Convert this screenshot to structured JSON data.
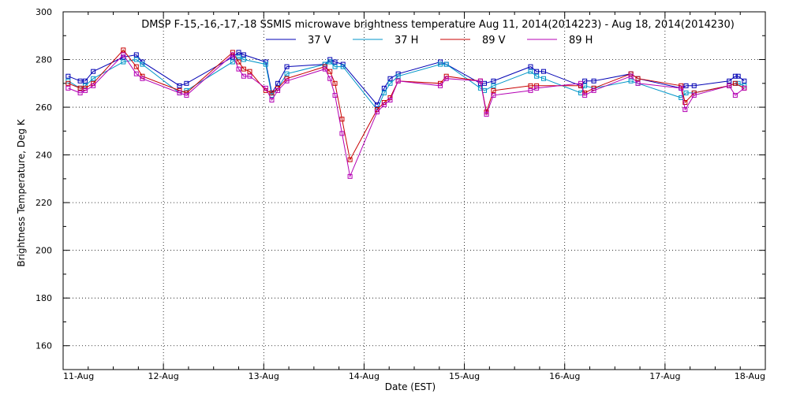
{
  "chart_data": {
    "type": "line",
    "title": "DMSP F-15,-16,-17,-18 SSMIS microwave brightness temperature Aug 11, 2014(2014223) - Aug 18, 2014(2014230)",
    "xlabel": "Date (EST)",
    "ylabel": "Brightness Temperature, Deg K",
    "xlim": [
      0,
      7
    ],
    "ylim": [
      150,
      300
    ],
    "grid": true,
    "legend_position": "top",
    "x_tick_labels": [
      "11-Aug",
      "12-Aug",
      "13-Aug",
      "14-Aug",
      "15-Aug",
      "16-Aug",
      "17-Aug",
      "18-Aug"
    ],
    "y_ticks": [
      160,
      180,
      200,
      220,
      240,
      260,
      280,
      300
    ],
    "series": [
      {
        "name": "37 V",
        "color": "#0000b4",
        "x": [
          0.05,
          0.17,
          0.22,
          0.3,
          0.6,
          0.73,
          0.79,
          1.16,
          1.23,
          1.69,
          1.75,
          1.8,
          2.02,
          2.08,
          2.14,
          2.23,
          2.61,
          2.66,
          2.71,
          2.79,
          3.13,
          3.2,
          3.26,
          3.34,
          3.76,
          3.82,
          4.16,
          4.2,
          4.29,
          4.66,
          4.72,
          4.79,
          5.16,
          5.2,
          5.29,
          5.66,
          5.73,
          6.16,
          6.21,
          6.29,
          6.64,
          6.7,
          6.73,
          6.79
        ],
        "values": [
          273,
          271,
          271,
          275,
          281,
          282,
          279,
          269,
          270,
          281,
          283,
          282,
          279,
          266,
          270,
          277,
          278,
          280,
          279,
          278,
          261,
          268,
          272,
          274,
          279,
          278,
          270,
          270,
          271,
          277,
          275,
          275,
          269,
          271,
          271,
          274,
          272,
          268,
          269,
          269,
          271,
          273,
          273,
          271
        ]
      },
      {
        "name": "37 H",
        "color": "#0096c8",
        "x": [
          0.05,
          0.17,
          0.22,
          0.3,
          0.6,
          0.73,
          0.79,
          1.16,
          1.23,
          1.69,
          1.75,
          1.8,
          2.02,
          2.08,
          2.14,
          2.23,
          2.61,
          2.66,
          2.71,
          2.79,
          3.13,
          3.2,
          3.26,
          3.34,
          3.76,
          3.82,
          4.16,
          4.2,
          4.29,
          4.66,
          4.72,
          4.79,
          5.16,
          5.2,
          5.29,
          5.66,
          5.73,
          6.16,
          6.21,
          6.29,
          6.64,
          6.7,
          6.73,
          6.79
        ],
        "values": [
          271,
          268,
          269,
          272,
          279,
          280,
          278,
          266,
          267,
          279,
          281,
          280,
          278,
          265,
          268,
          274,
          278,
          279,
          277,
          277,
          259,
          266,
          270,
          273,
          278,
          278,
          268,
          267,
          269,
          275,
          273,
          272,
          266,
          269,
          268,
          271,
          270,
          264,
          266,
          266,
          269,
          270,
          270,
          269
        ]
      },
      {
        "name": "89 V",
        "color": "#c80000",
        "x": [
          0.05,
          0.17,
          0.22,
          0.3,
          0.6,
          0.73,
          0.79,
          1.16,
          1.23,
          1.69,
          1.75,
          1.8,
          1.86,
          2.02,
          2.08,
          2.14,
          2.23,
          2.61,
          2.66,
          2.71,
          2.78,
          2.86,
          3.13,
          3.2,
          3.26,
          3.34,
          3.76,
          3.82,
          4.16,
          4.22,
          4.29,
          4.66,
          4.72,
          5.16,
          5.2,
          5.29,
          5.66,
          5.73,
          6.16,
          6.2,
          6.29,
          6.64,
          6.7,
          6.79
        ],
        "values": [
          270,
          268,
          268,
          270,
          284,
          277,
          273,
          267,
          266,
          283,
          279,
          276,
          275,
          267,
          266,
          268,
          272,
          277,
          275,
          270,
          255,
          238,
          259,
          262,
          264,
          271,
          270,
          273,
          271,
          258,
          267,
          269,
          269,
          269,
          266,
          268,
          274,
          272,
          269,
          262,
          266,
          269,
          270,
          268
        ]
      },
      {
        "name": "89 H",
        "color": "#b400b4",
        "x": [
          0.05,
          0.17,
          0.22,
          0.3,
          0.6,
          0.73,
          0.79,
          1.16,
          1.23,
          1.69,
          1.75,
          1.8,
          1.86,
          2.02,
          2.08,
          2.14,
          2.23,
          2.61,
          2.66,
          2.71,
          2.78,
          2.86,
          3.13,
          3.2,
          3.26,
          3.34,
          3.76,
          3.82,
          4.16,
          4.22,
          4.29,
          4.66,
          4.72,
          5.16,
          5.2,
          5.29,
          5.66,
          5.73,
          6.16,
          6.2,
          6.29,
          6.64,
          6.7,
          6.79
        ],
        "values": [
          268,
          266,
          267,
          269,
          282,
          274,
          272,
          266,
          265,
          282,
          276,
          273,
          273,
          268,
          263,
          267,
          271,
          276,
          272,
          265,
          249,
          231,
          258,
          261,
          263,
          271,
          269,
          272,
          271,
          257,
          265,
          267,
          268,
          270,
          265,
          267,
          273,
          270,
          268,
          259,
          265,
          269,
          265,
          268
        ]
      }
    ]
  }
}
